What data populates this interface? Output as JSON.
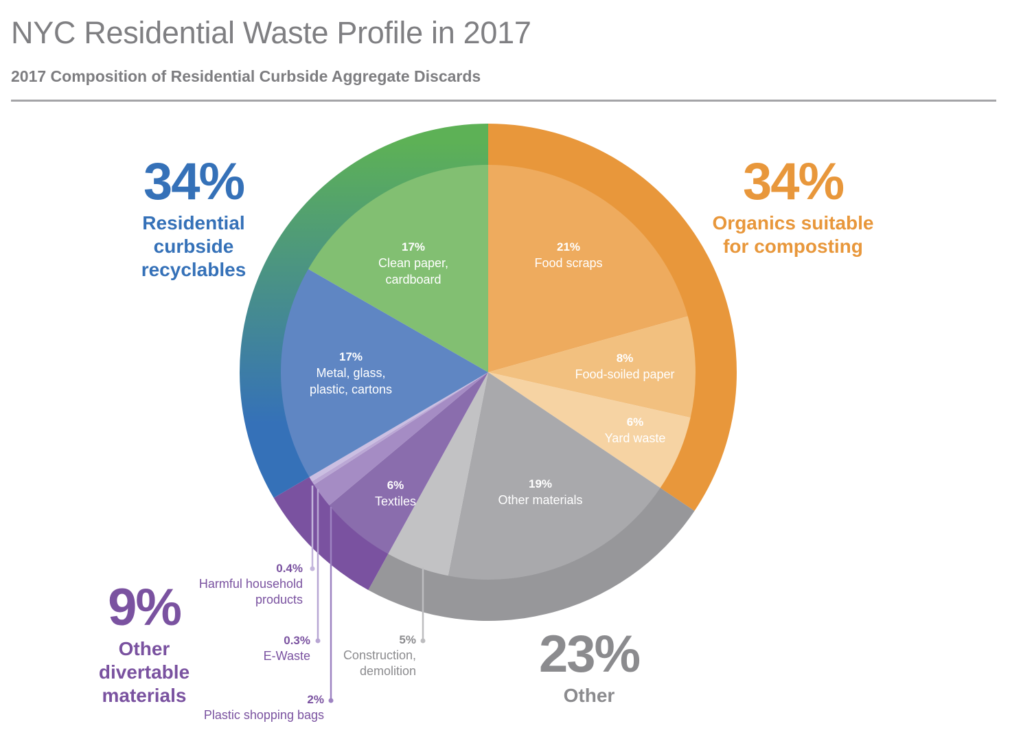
{
  "title": "NYC Residential Waste Profile in 2017",
  "subtitle": "2017 Composition of Residential Curbside Aggregate Discards",
  "colors": {
    "orange": "#e8973b",
    "green": "#5db156",
    "blue": "#3571b8",
    "purple": "#7a52a0",
    "gray": "#97979a"
  },
  "groups": [
    {
      "id": "recyclables",
      "pct": "34%",
      "label_lines": [
        "Residential",
        "curbside",
        "recyclables"
      ],
      "color": "#3571b8"
    },
    {
      "id": "organics",
      "pct": "34%",
      "label_lines": [
        "Organics suitable",
        "for composting"
      ],
      "color": "#e8973b"
    },
    {
      "id": "divertable",
      "pct": "9%",
      "label_lines": [
        "Other",
        "divertable",
        "materials"
      ],
      "color": "#7a52a0"
    },
    {
      "id": "other",
      "pct": "23%",
      "label_lines": [
        "Other"
      ],
      "color": "#8b8b8e"
    }
  ],
  "chart_data": {
    "type": "pie",
    "title": "2017 Composition of Residential Curbside Aggregate Discards",
    "unit": "%",
    "slices": [
      {
        "name": "Food scraps",
        "value": 21,
        "label": "21%",
        "group": "Organics suitable for composting"
      },
      {
        "name": "Food-soiled paper",
        "value": 8,
        "label": "8%",
        "group": "Organics suitable for composting"
      },
      {
        "name": "Yard waste",
        "value": 6,
        "label": "6%",
        "group": "Organics suitable for composting"
      },
      {
        "name": "Other materials",
        "value": 19,
        "label": "19%",
        "group": "Other"
      },
      {
        "name": "Construction, demolition",
        "value": 5,
        "label": "5%",
        "group": "Other"
      },
      {
        "name": "Textiles",
        "value": 6,
        "label": "6%",
        "group": "Other divertable materials"
      },
      {
        "name": "Plastic shopping bags",
        "value": 2,
        "label": "2%",
        "group": "Other divertable materials"
      },
      {
        "name": "E-Waste",
        "value": 0.3,
        "label": "0.3%",
        "group": "Other divertable materials"
      },
      {
        "name": "Harmful household products",
        "value": 0.4,
        "label": "0.4%",
        "group": "Other divertable materials"
      },
      {
        "name": "Metal, glass, plastic, cartons",
        "value": 17,
        "label": "17%",
        "group": "Residential curbside recyclables"
      },
      {
        "name": "Clean paper, cardboard",
        "value": 17,
        "label": "17%",
        "group": "Residential curbside recyclables"
      }
    ],
    "groups": [
      {
        "name": "Residential curbside recyclables",
        "value": 34,
        "label": "34%"
      },
      {
        "name": "Organics suitable for composting",
        "value": 34,
        "label": "34%"
      },
      {
        "name": "Other divertable materials",
        "value": 9,
        "label": "9%"
      },
      {
        "name": "Other",
        "value": 23,
        "label": "23%"
      }
    ],
    "inner_labels": [
      {
        "pct": "21%",
        "lines": [
          "Food scraps"
        ]
      },
      {
        "pct": "8%",
        "lines": [
          "Food-soiled paper"
        ]
      },
      {
        "pct": "6%",
        "lines": [
          "Yard waste"
        ]
      },
      {
        "pct": "19%",
        "lines": [
          "Other materials"
        ]
      },
      {
        "pct": "6%",
        "lines": [
          "Textiles"
        ]
      },
      {
        "pct": "17%",
        "lines": [
          "Metal, glass,",
          "plastic, cartons"
        ]
      },
      {
        "pct": "17%",
        "lines": [
          "Clean paper,",
          "cardboard"
        ]
      }
    ],
    "callouts": [
      {
        "pct": "0.4%",
        "lines": [
          "Harmful household",
          "products"
        ]
      },
      {
        "pct": "0.3%",
        "lines": [
          "E-Waste"
        ]
      },
      {
        "pct": "2%",
        "lines": [
          "Plastic shopping bags"
        ]
      },
      {
        "pct": "5%",
        "lines": [
          "Construction,",
          "demolition"
        ]
      }
    ]
  }
}
